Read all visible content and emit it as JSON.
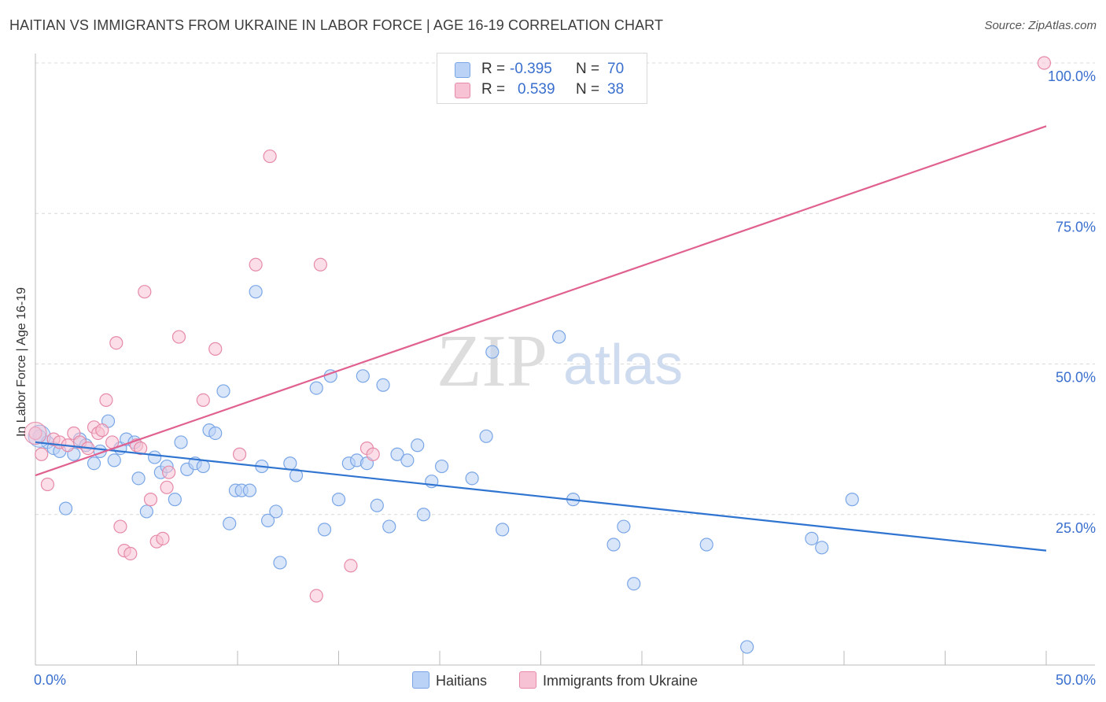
{
  "header": {
    "title": "HAITIAN VS IMMIGRANTS FROM UKRAINE IN LABOR FORCE | AGE 16-19 CORRELATION CHART",
    "source": "Source: ZipAtlas.com"
  },
  "watermark": {
    "zip": "ZIP",
    "atlas": "atlas"
  },
  "legend": {
    "rows": [
      {
        "r_label": "R =",
        "r_value": "-0.395",
        "n_label": "N =",
        "n_value": "70"
      },
      {
        "r_label": "R =",
        "r_value": "0.539",
        "n_label": "N =",
        "n_value": "38"
      }
    ]
  },
  "colors": {
    "blue_fill": "#b9d2f5",
    "blue_stroke": "#7aa6e6",
    "blue_line": "#2f74d0",
    "pink_fill": "#f7c3d4",
    "pink_stroke": "#e68aa8",
    "pink_line": "#e0608f",
    "tick_text": "#3a6fce",
    "grid": "#d9d9d9"
  },
  "chart_data": {
    "type": "scatter",
    "title": "HAITIAN VS IMMIGRANTS FROM UKRAINE IN LABOR FORCE | AGE 16-19 CORRELATION CHART",
    "xlabel": "",
    "ylabel": "In Labor Force | Age 16-19",
    "xlim": [
      0,
      50
    ],
    "ylim": [
      0,
      100
    ],
    "x_tick_labels": [
      {
        "value": 0,
        "label": "0.0%"
      },
      {
        "value": 50,
        "label": "50.0%"
      }
    ],
    "y_tick_labels": [
      {
        "value": 25,
        "label": "25.0%"
      },
      {
        "value": 50,
        "label": "50.0%"
      },
      {
        "value": 75,
        "label": "75.0%"
      },
      {
        "value": 100,
        "label": "100.0%"
      }
    ],
    "legend_position": "top-center",
    "series": [
      {
        "name": "Haitians",
        "color": "blue",
        "r": -0.395,
        "n": 70,
        "trend": {
          "x": [
            0,
            50
          ],
          "y": [
            37.0,
            19.0
          ]
        },
        "points": [
          [
            0.2,
            38.0
          ],
          [
            0.6,
            37.0
          ],
          [
            0.9,
            36.0
          ],
          [
            1.2,
            35.5
          ],
          [
            1.5,
            26.0
          ],
          [
            1.9,
            35.0
          ],
          [
            2.2,
            37.5
          ],
          [
            2.5,
            36.5
          ],
          [
            2.9,
            33.5
          ],
          [
            3.2,
            35.5
          ],
          [
            3.6,
            40.5
          ],
          [
            3.9,
            34.0
          ],
          [
            4.2,
            36.0
          ],
          [
            4.5,
            37.5
          ],
          [
            4.9,
            37.0
          ],
          [
            5.1,
            31.0
          ],
          [
            5.5,
            25.5
          ],
          [
            5.9,
            34.5
          ],
          [
            6.2,
            32.0
          ],
          [
            6.5,
            33.0
          ],
          [
            6.9,
            27.5
          ],
          [
            7.2,
            37.0
          ],
          [
            7.5,
            32.5
          ],
          [
            7.9,
            33.5
          ],
          [
            8.3,
            33.0
          ],
          [
            8.6,
            39.0
          ],
          [
            8.9,
            38.5
          ],
          [
            9.3,
            45.5
          ],
          [
            9.6,
            23.5
          ],
          [
            9.9,
            29.0
          ],
          [
            10.2,
            29.0
          ],
          [
            10.6,
            29.0
          ],
          [
            10.9,
            62.0
          ],
          [
            11.2,
            33.0
          ],
          [
            11.5,
            24.0
          ],
          [
            11.9,
            25.5
          ],
          [
            12.1,
            17.0
          ],
          [
            12.6,
            33.5
          ],
          [
            12.9,
            31.5
          ],
          [
            13.9,
            46.0
          ],
          [
            14.3,
            22.5
          ],
          [
            14.6,
            48.0
          ],
          [
            15.0,
            27.5
          ],
          [
            15.5,
            33.5
          ],
          [
            15.9,
            34.0
          ],
          [
            16.2,
            48.0
          ],
          [
            16.4,
            33.5
          ],
          [
            16.9,
            26.5
          ],
          [
            17.2,
            46.5
          ],
          [
            17.5,
            23.0
          ],
          [
            17.9,
            35.0
          ],
          [
            18.4,
            34.0
          ],
          [
            18.9,
            36.5
          ],
          [
            19.2,
            25.0
          ],
          [
            19.6,
            30.5
          ],
          [
            20.1,
            33.0
          ],
          [
            21.6,
            31.0
          ],
          [
            22.3,
            38.0
          ],
          [
            22.6,
            52.0
          ],
          [
            23.1,
            22.5
          ],
          [
            25.9,
            54.5
          ],
          [
            26.6,
            27.5
          ],
          [
            28.6,
            20.0
          ],
          [
            29.1,
            23.0
          ],
          [
            29.6,
            13.5
          ],
          [
            33.2,
            20.0
          ],
          [
            35.2,
            3.0
          ],
          [
            38.4,
            21.0
          ],
          [
            38.9,
            19.5
          ],
          [
            40.4,
            27.5
          ]
        ]
      },
      {
        "name": "Immigrants from Ukraine",
        "color": "pink",
        "r": 0.539,
        "n": 38,
        "trend": {
          "x": [
            0,
            50
          ],
          "y": [
            31.5,
            89.5
          ]
        },
        "points": [
          [
            0.0,
            38.5
          ],
          [
            0.3,
            35.0
          ],
          [
            0.6,
            30.0
          ],
          [
            0.9,
            37.5
          ],
          [
            1.2,
            37.0
          ],
          [
            1.6,
            36.5
          ],
          [
            1.9,
            38.5
          ],
          [
            2.2,
            37.0
          ],
          [
            2.6,
            36.0
          ],
          [
            2.9,
            39.5
          ],
          [
            3.1,
            38.5
          ],
          [
            3.3,
            39.0
          ],
          [
            3.5,
            44.0
          ],
          [
            3.8,
            37.0
          ],
          [
            4.0,
            53.5
          ],
          [
            4.2,
            23.0
          ],
          [
            4.4,
            19.0
          ],
          [
            4.7,
            18.5
          ],
          [
            5.0,
            36.5
          ],
          [
            5.2,
            36.0
          ],
          [
            5.4,
            62.0
          ],
          [
            5.7,
            27.5
          ],
          [
            6.0,
            20.5
          ],
          [
            6.3,
            21.0
          ],
          [
            6.5,
            29.5
          ],
          [
            6.6,
            32.0
          ],
          [
            7.1,
            54.5
          ],
          [
            8.3,
            44.0
          ],
          [
            8.9,
            52.5
          ],
          [
            10.1,
            35.0
          ],
          [
            10.9,
            66.5
          ],
          [
            11.6,
            84.5
          ],
          [
            13.9,
            11.5
          ],
          [
            14.1,
            66.5
          ],
          [
            15.6,
            16.5
          ],
          [
            16.4,
            36.0
          ],
          [
            16.7,
            35.0
          ],
          [
            49.9,
            100.0
          ]
        ]
      }
    ]
  }
}
